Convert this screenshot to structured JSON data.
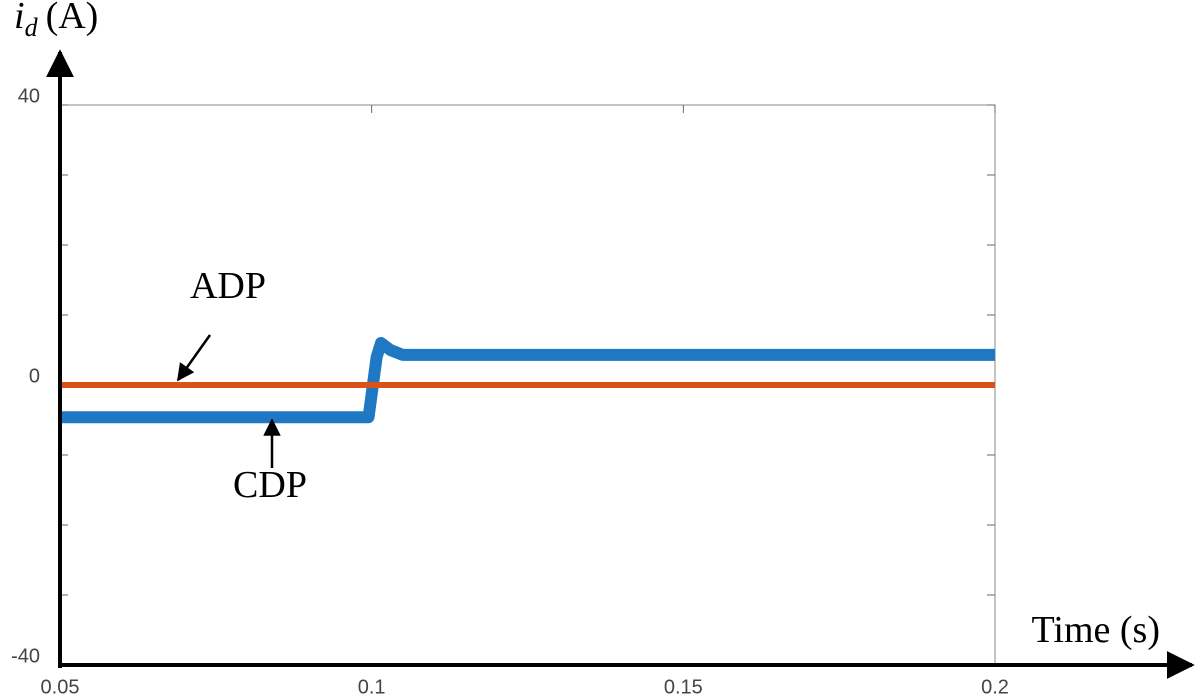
{
  "chart_data": {
    "type": "line",
    "ylabel": {
      "symbol": "i",
      "subscript": "d",
      "unit": "(A)"
    },
    "xlabel": "Time (s)",
    "xlim": [
      0.05,
      0.2
    ],
    "xticks": [
      0.05,
      0.1,
      0.15,
      0.2
    ],
    "ylim": [
      -40,
      40
    ],
    "yticks": [
      -40,
      0,
      40
    ],
    "yminorticks": [
      -30,
      -20,
      -10,
      10,
      20,
      30
    ],
    "series": [
      {
        "name": "ADP",
        "color": "#d95319",
        "x": [
          0.05,
          0.2
        ],
        "values": [
          0,
          0
        ]
      },
      {
        "name": "CDP",
        "color": "#1f78c4",
        "x": [
          0.05,
          0.0995,
          0.1008,
          0.1015,
          0.103,
          0.105,
          0.2
        ],
        "values": [
          -4.6,
          -4.6,
          4,
          6,
          5,
          4.3,
          4.3
        ]
      }
    ]
  }
}
